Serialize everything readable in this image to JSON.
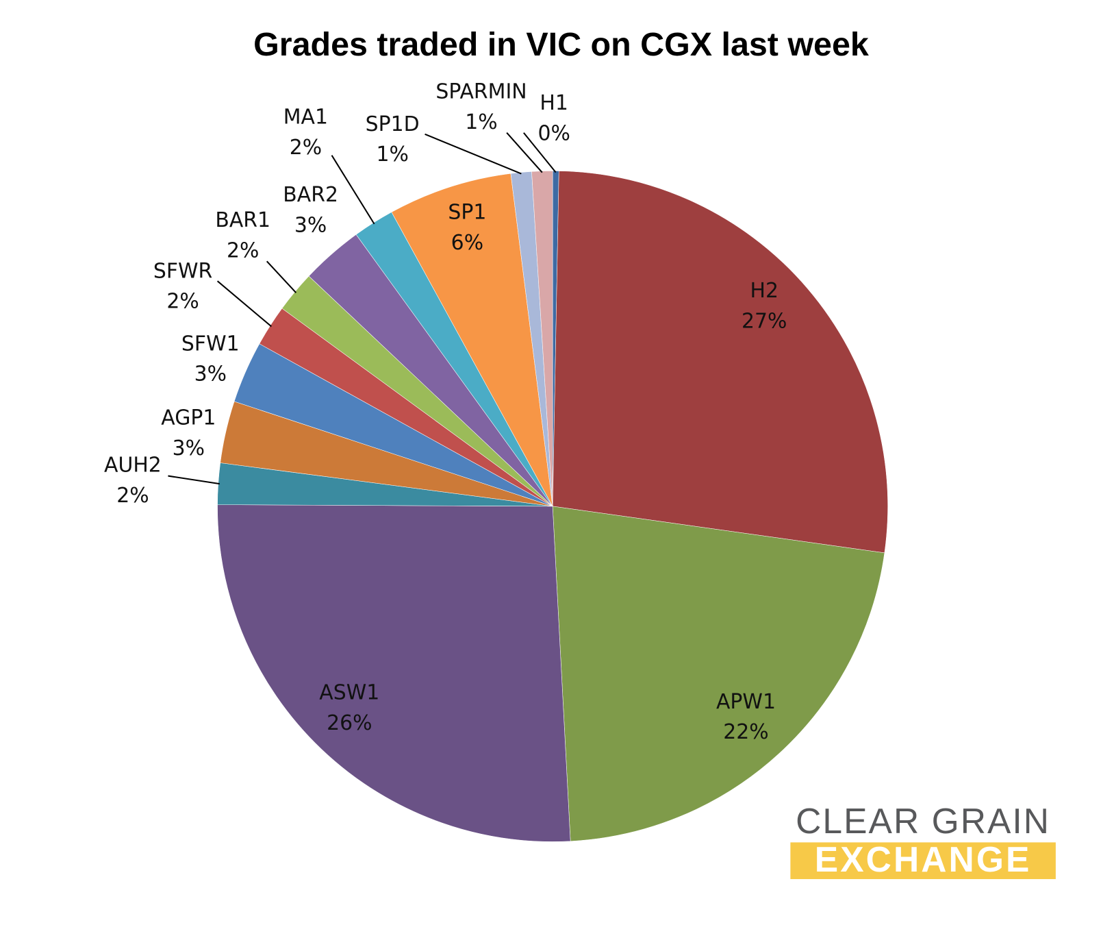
{
  "chart_data": {
    "type": "pie",
    "title": "Grades traded in VIC on CGX last week",
    "categories": [
      "H1",
      "H2",
      "APW1",
      "ASW1",
      "AUH2",
      "AGP1",
      "SFW1",
      "SFWR",
      "BAR1",
      "BAR2",
      "MA1",
      "SP1",
      "SP1D",
      "SPARMIN"
    ],
    "values": [
      0.3,
      27,
      22,
      26,
      2,
      3,
      3,
      2,
      2,
      3,
      2,
      6,
      1,
      1
    ],
    "value_labels": [
      "0%",
      "27%",
      "22%",
      "26%",
      "2%",
      "3%",
      "3%",
      "2%",
      "2%",
      "3%",
      "2%",
      "6%",
      "1%",
      "1%"
    ],
    "colors": [
      "#3e6aa3",
      "#9e3f3f",
      "#7f9b4a",
      "#6a5286",
      "#3b8ba0",
      "#cc7a38",
      "#4f81bd",
      "#c0504d",
      "#9bbb59",
      "#8064a2",
      "#4bacc6",
      "#f79646",
      "#a9b8d9",
      "#d9a7a8"
    ]
  },
  "logo": {
    "line1": "CLEAR GRAIN",
    "line2": "EXCHANGE"
  }
}
